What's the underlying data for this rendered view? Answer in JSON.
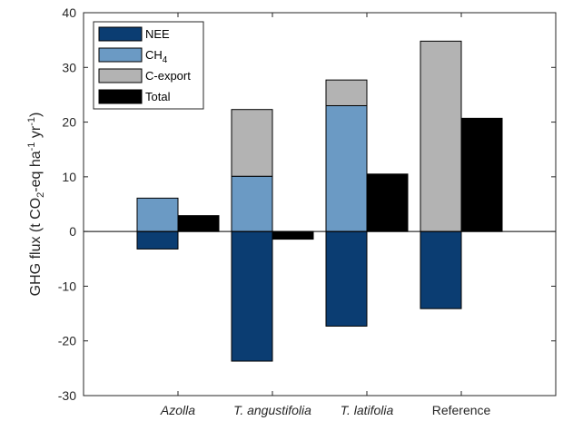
{
  "chart_data": {
    "type": "bar",
    "stacked": true,
    "categories": [
      "Azolla",
      "T. angustifolia",
      "T. latifolia",
      "Reference"
    ],
    "category_italic": [
      true,
      true,
      true,
      false
    ],
    "ylabel": {
      "prefix": "GHG flux (t CO",
      "sub1": "2",
      "mid": "-eq ha",
      "sup1": "-1",
      "mid2": " yr",
      "sup2": "-1",
      "suffix": ")"
    },
    "ylim": [
      -30,
      40
    ],
    "yticks": [
      -30,
      -20,
      -10,
      0,
      10,
      20,
      30,
      40
    ],
    "grid": false,
    "legend_position": "top-left",
    "series": [
      {
        "name": "NEE",
        "label": "NEE",
        "sub": "",
        "color": "#0b3d72",
        "values": [
          -3.2,
          -23.7,
          -17.3,
          -14.1
        ],
        "stack": "components"
      },
      {
        "name": "CH4",
        "label": "CH",
        "sub": "4",
        "color": "#6b9ac4",
        "values": [
          6.1,
          10.1,
          23.0,
          0
        ],
        "stack": "components"
      },
      {
        "name": "C-export",
        "label": "C-export",
        "sub": "",
        "color": "#b3b3b3",
        "values": [
          0,
          12.2,
          4.7,
          34.8
        ],
        "stack": "components"
      },
      {
        "name": "Total",
        "label": "Total",
        "sub": "",
        "color": "#000000",
        "values": [
          2.9,
          -1.4,
          10.5,
          20.7
        ],
        "stack": "total"
      }
    ]
  }
}
